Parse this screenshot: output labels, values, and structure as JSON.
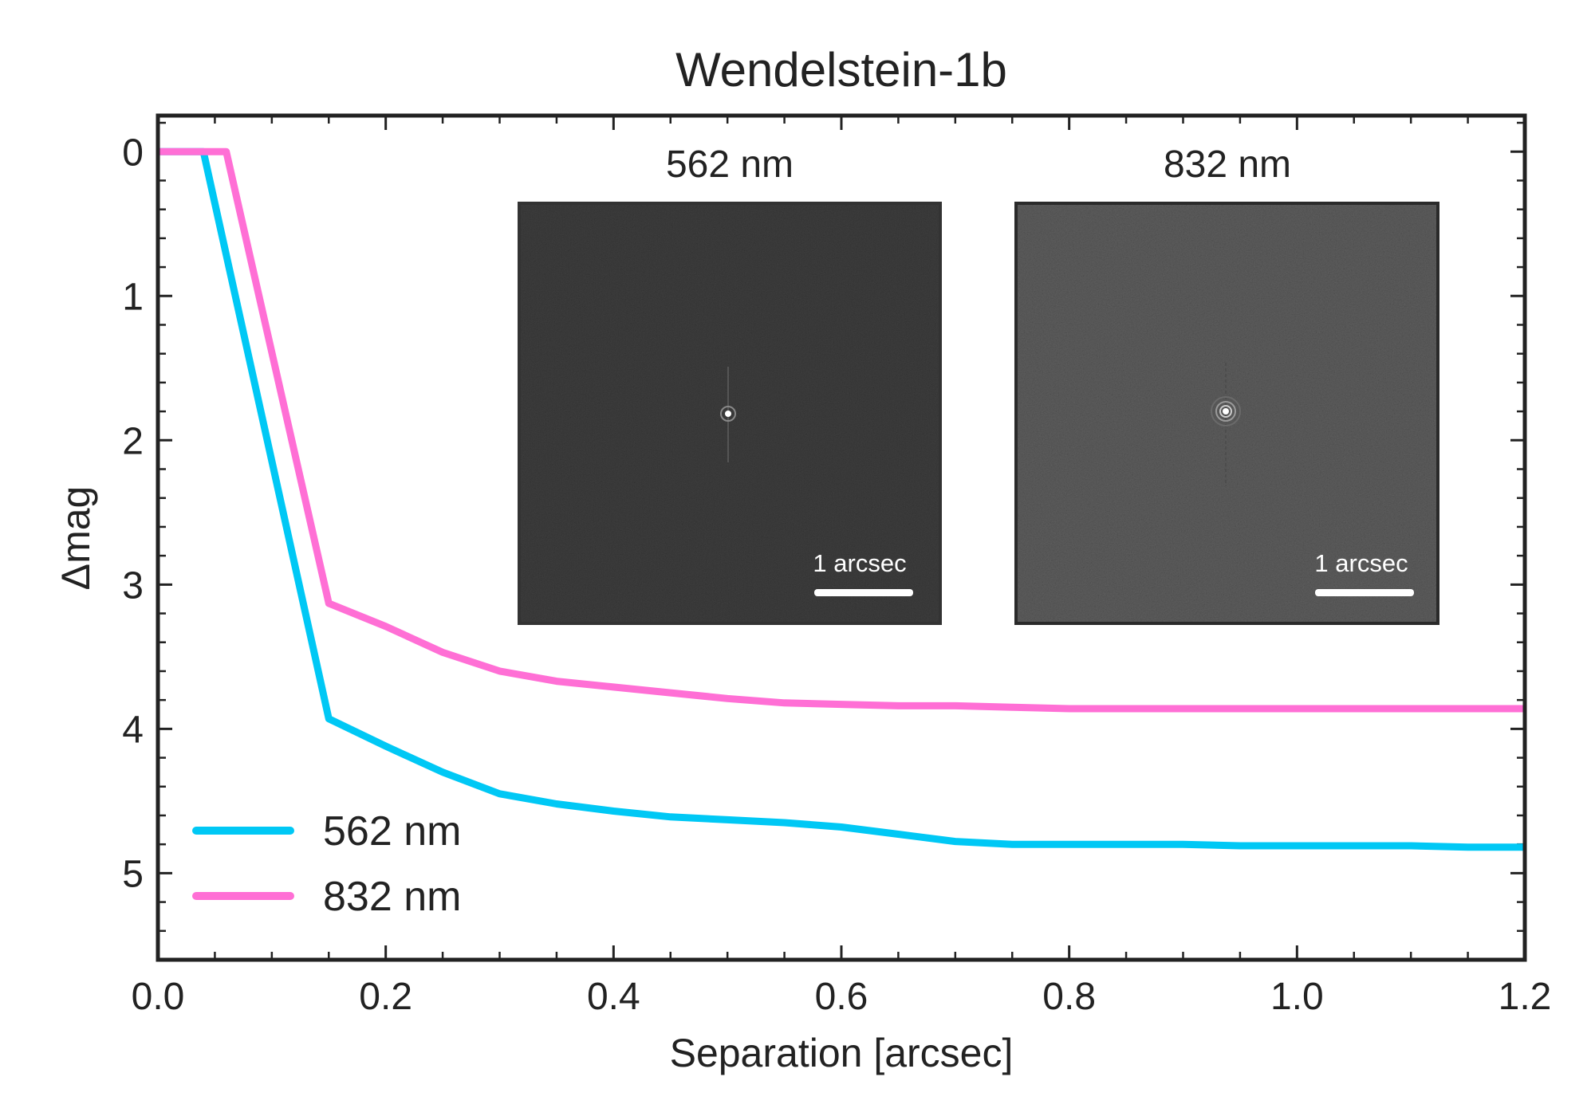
{
  "chart_data": {
    "type": "line",
    "title": "Wendelstein-1b",
    "xlabel": "Separation [arcsec]",
    "ylabel": "Δmag",
    "xlim": [
      0.0,
      1.2
    ],
    "ylim": [
      5.6,
      -0.25
    ],
    "y_inverted": true,
    "x_ticks": [
      "0.0",
      "0.2",
      "0.4",
      "0.6",
      "0.8",
      "1.0",
      "1.2"
    ],
    "y_ticks": [
      "0",
      "1",
      "2",
      "3",
      "4",
      "5"
    ],
    "grid": false,
    "legend": "bottom-left",
    "series": [
      {
        "name": "562 nm",
        "color": "#00c8f5",
        "x": [
          0.0,
          0.04,
          0.15,
          0.2,
          0.25,
          0.3,
          0.35,
          0.4,
          0.45,
          0.5,
          0.55,
          0.6,
          0.65,
          0.7,
          0.75,
          0.8,
          0.85,
          0.9,
          0.95,
          1.0,
          1.05,
          1.1,
          1.15,
          1.2
        ],
        "y": [
          0.0,
          0.0,
          3.93,
          4.12,
          4.3,
          4.45,
          4.52,
          4.57,
          4.61,
          4.63,
          4.65,
          4.68,
          4.73,
          4.78,
          4.8,
          4.8,
          4.8,
          4.8,
          4.81,
          4.81,
          4.81,
          4.81,
          4.82,
          4.82
        ]
      },
      {
        "name": "832 nm",
        "color": "#ff6fd5",
        "x": [
          0.0,
          0.06,
          0.15,
          0.2,
          0.25,
          0.3,
          0.35,
          0.4,
          0.45,
          0.5,
          0.55,
          0.6,
          0.65,
          0.7,
          0.75,
          0.8,
          0.85,
          0.9,
          0.95,
          1.0,
          1.05,
          1.1,
          1.15,
          1.2
        ],
        "y": [
          0.0,
          0.0,
          3.13,
          3.29,
          3.47,
          3.6,
          3.67,
          3.71,
          3.75,
          3.79,
          3.82,
          3.83,
          3.84,
          3.84,
          3.85,
          3.86,
          3.86,
          3.86,
          3.86,
          3.86,
          3.86,
          3.86,
          3.86,
          3.86
        ]
      }
    ],
    "insets": [
      {
        "label": "562 nm",
        "scale_bar_label": "1 arcsec",
        "background": "#1c1c1c"
      },
      {
        "label": "832 nm",
        "scale_bar_label": "1 arcsec",
        "background": "#3a3a3a"
      }
    ]
  }
}
